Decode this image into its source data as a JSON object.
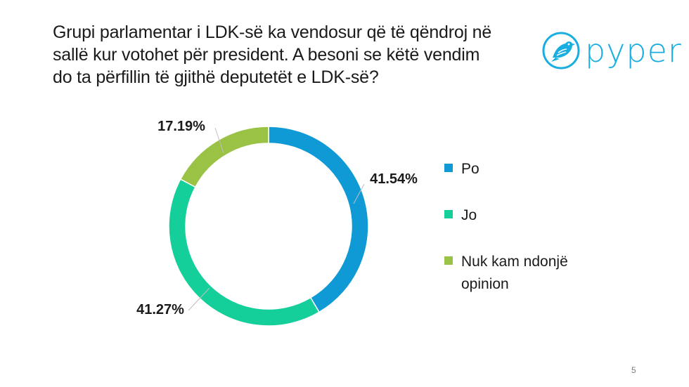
{
  "title_lines": [
    "Grupi parlamentar i LDK-së ka vendosur që të qëndroj në",
    "sallë kur votohet për president. A besoni se këtë vendim",
    "do ta përfillin të gjithë deputetët e LDK-së?"
  ],
  "logo": {
    "text": "pyper",
    "icon": "bird-icon",
    "color": "#19aee0"
  },
  "page_number": "5",
  "chart_data": {
    "type": "pie",
    "variant": "donut",
    "title": "Grupi parlamentar i LDK-së ka vendosur që të qëndroj në sallë kur votohet për president. A besoni se këtë vendim do ta përfillin të gjithë deputetët e LDK-së?",
    "categories": [
      "Po",
      "Jo",
      "Nuk kam ndonjë opinion"
    ],
    "values": [
      41.54,
      41.27,
      17.19
    ],
    "data_labels": [
      "41.54%",
      "41.27%",
      "17.19%"
    ],
    "colors": [
      "#0f9ad6",
      "#14cf9a",
      "#9ac345"
    ],
    "legend_position": "right",
    "legend_lines": [
      [
        "Po"
      ],
      [
        "Jo"
      ],
      [
        "Nuk kam ndonjë",
        "opinion"
      ]
    ]
  }
}
